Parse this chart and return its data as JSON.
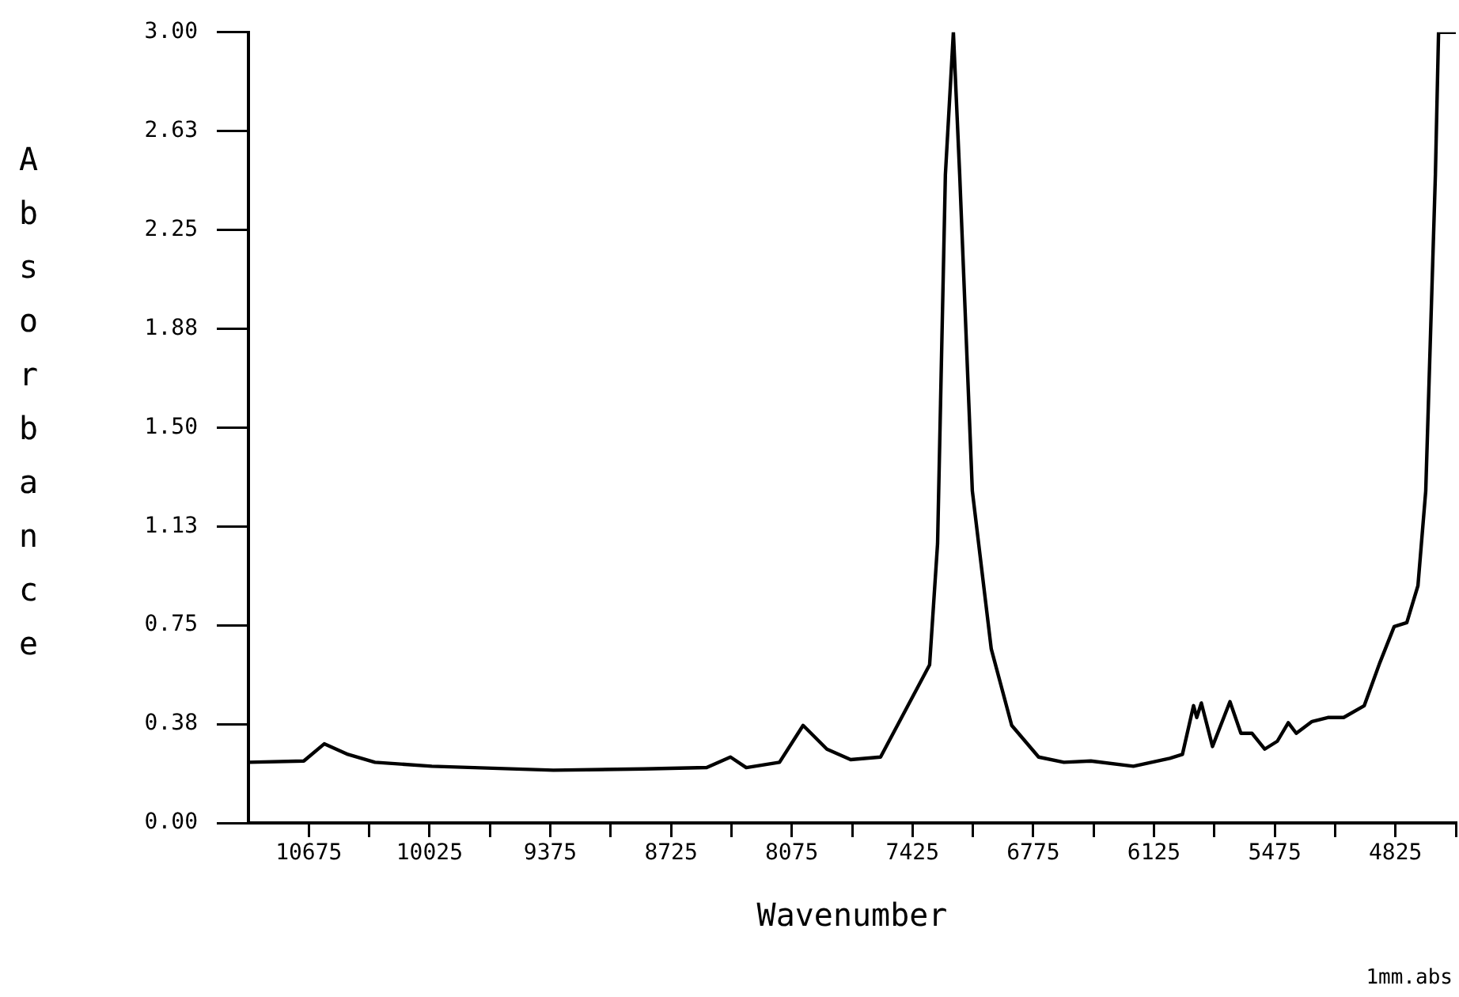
{
  "chart_data": {
    "type": "line",
    "xlabel": "Wavenumber",
    "ylabel": "Absorbance",
    "annotations": [
      "1mm.abs"
    ],
    "xlim": [
      11000,
      4500
    ],
    "ylim": [
      0,
      3
    ],
    "xticks": [
      {
        "value": 10675,
        "label": "10675"
      },
      {
        "value": 10350,
        "label": null
      },
      {
        "value": 10025,
        "label": "10025"
      },
      {
        "value": 9700,
        "label": null
      },
      {
        "value": 9375,
        "label": "9375"
      },
      {
        "value": 9050,
        "label": null
      },
      {
        "value": 8725,
        "label": "8725"
      },
      {
        "value": 8400,
        "label": null
      },
      {
        "value": 8075,
        "label": "8075"
      },
      {
        "value": 7750,
        "label": null
      },
      {
        "value": 7425,
        "label": "7425"
      },
      {
        "value": 7100,
        "label": null
      },
      {
        "value": 6775,
        "label": "6775"
      },
      {
        "value": 6450,
        "label": null
      },
      {
        "value": 6125,
        "label": "6125"
      },
      {
        "value": 5800,
        "label": null
      },
      {
        "value": 5475,
        "label": "5475"
      },
      {
        "value": 5150,
        "label": null
      },
      {
        "value": 4825,
        "label": "4825"
      },
      {
        "value": 4500,
        "label": null
      }
    ],
    "yticks": [
      {
        "value": 0,
        "label": "0.00"
      },
      {
        "value": 0.375,
        "label": "0.38"
      },
      {
        "value": 0.75,
        "label": "0.75"
      },
      {
        "value": 1.125,
        "label": "1.13"
      },
      {
        "value": 1.5,
        "label": "1.50"
      },
      {
        "value": 1.875,
        "label": "1.88"
      },
      {
        "value": 2.25,
        "label": "2.25"
      },
      {
        "value": 2.625,
        "label": "2.63"
      },
      {
        "value": 3,
        "label": "3.00"
      }
    ],
    "grid": false,
    "legend": false,
    "marker": "none",
    "line_style": "solid",
    "series": [
      {
        "color": "#000000",
        "x": [
          11000,
          10702,
          10592,
          10464,
          10319,
          10013,
          9358,
          8873,
          8533,
          8405,
          8320,
          8141,
          8014,
          7886,
          7758,
          7597,
          7461,
          7333,
          7290,
          7248,
          7205,
          7171,
          7103,
          7001,
          6891,
          6746,
          6610,
          6465,
          6236,
          6040,
          5972,
          5912,
          5895,
          5870,
          5810,
          5716,
          5657,
          5597,
          5529,
          5461,
          5402,
          5359,
          5274,
          5189,
          5104,
          4993,
          4908,
          4832,
          4764,
          4704,
          4662,
          4636,
          4610,
          4593,
          4500
        ],
        "values": [
          0.23,
          0.235,
          0.3,
          0.26,
          0.23,
          0.215,
          0.2,
          0.205,
          0.21,
          0.25,
          0.21,
          0.23,
          0.37,
          0.28,
          0.24,
          0.25,
          0.43,
          0.6,
          1.06,
          2.46,
          3.0,
          2.46,
          1.26,
          0.66,
          0.37,
          0.25,
          0.23,
          0.235,
          0.215,
          0.245,
          0.26,
          0.445,
          0.4,
          0.455,
          0.29,
          0.46,
          0.34,
          0.34,
          0.28,
          0.31,
          0.38,
          0.34,
          0.385,
          0.4,
          0.4,
          0.445,
          0.61,
          0.745,
          0.76,
          0.9,
          1.26,
          1.86,
          2.46,
          3.0,
          3.0
        ]
      }
    ]
  }
}
